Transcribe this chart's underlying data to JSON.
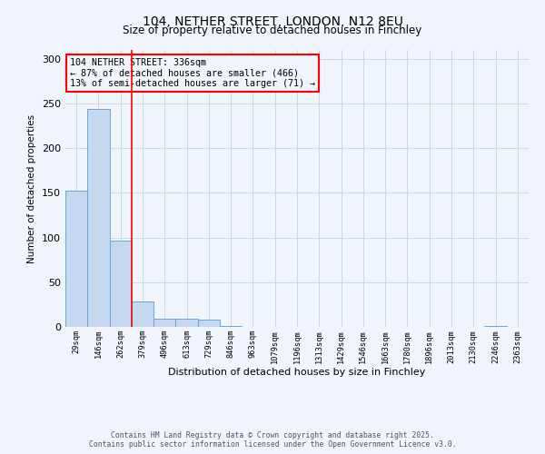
{
  "title": "104, NETHER STREET, LONDON, N12 8EU",
  "subtitle": "Size of property relative to detached houses in Finchley",
  "bar_color": "#c5d8f0",
  "bar_edge_color": "#5a9fd4",
  "categories": [
    "29sqm",
    "146sqm",
    "262sqm",
    "379sqm",
    "496sqm",
    "613sqm",
    "729sqm",
    "846sqm",
    "963sqm",
    "1079sqm",
    "1196sqm",
    "1313sqm",
    "1429sqm",
    "1546sqm",
    "1663sqm",
    "1780sqm",
    "1896sqm",
    "2013sqm",
    "2130sqm",
    "2246sqm",
    "2363sqm"
  ],
  "values": [
    152,
    244,
    97,
    28,
    9,
    9,
    8,
    1,
    0,
    0,
    0,
    0,
    0,
    0,
    0,
    0,
    0,
    0,
    0,
    1,
    0
  ],
  "ylim": [
    0,
    310
  ],
  "yticks": [
    0,
    50,
    100,
    150,
    200,
    250,
    300
  ],
  "ylabel": "Number of detached properties",
  "xlabel": "Distribution of detached houses by size in Finchley",
  "red_line_x": 2.5,
  "annotation_title": "104 NETHER STREET: 336sqm",
  "annotation_line1": "← 87% of detached houses are smaller (466)",
  "annotation_line2": "13% of semi-detached houses are larger (71) →",
  "footer1": "Contains HM Land Registry data © Crown copyright and database right 2025.",
  "footer2": "Contains public sector information licensed under the Open Government Licence v3.0.",
  "bg_color": "#f0f4fb",
  "grid_color": "#c8d8ea"
}
